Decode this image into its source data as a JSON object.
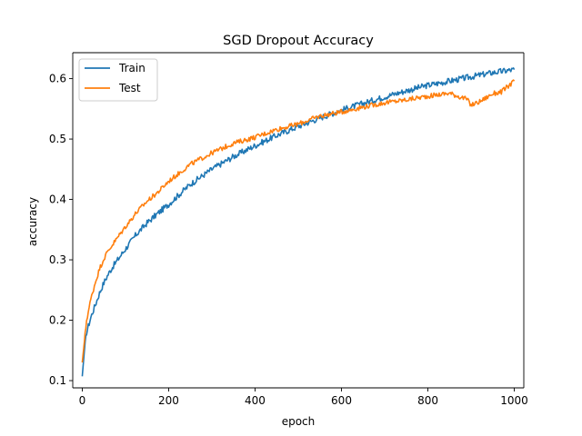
{
  "chart_data": {
    "type": "line",
    "title": "SGD Dropout Accuracy",
    "xlabel": "epoch",
    "ylabel": "accuracy",
    "xlim": [
      -22,
      1022
    ],
    "ylim": [
      0.088,
      0.643
    ],
    "xticks": [
      0,
      200,
      400,
      600,
      800,
      1000
    ],
    "xtick_labels": [
      "0",
      "200",
      "400",
      "600",
      "800",
      "1000"
    ],
    "yticks": [
      0.1,
      0.2,
      0.3,
      0.4,
      0.5,
      0.6
    ],
    "ytick_labels": [
      "0.1",
      "0.2",
      "0.3",
      "0.4",
      "0.5",
      "0.6"
    ],
    "grid": false,
    "legend_position": "top-left",
    "series": [
      {
        "name": "Train",
        "color": "#1f77b4",
        "x": [
          0,
          5,
          10,
          20,
          30,
          40,
          50,
          60,
          70,
          80,
          100,
          125,
          150,
          175,
          200,
          250,
          300,
          350,
          400,
          450,
          500,
          550,
          600,
          650,
          700,
          750,
          800,
          850,
          900,
          950,
          1000
        ],
        "y": [
          0.107,
          0.15,
          0.18,
          0.205,
          0.225,
          0.245,
          0.262,
          0.276,
          0.288,
          0.298,
          0.318,
          0.342,
          0.361,
          0.377,
          0.392,
          0.425,
          0.45,
          0.471,
          0.489,
          0.506,
          0.521,
          0.535,
          0.548,
          0.559,
          0.57,
          0.58,
          0.589,
          0.596,
          0.603,
          0.61,
          0.615
        ]
      },
      {
        "name": "Test",
        "color": "#ff7f0e",
        "x": [
          0,
          5,
          10,
          20,
          30,
          40,
          50,
          60,
          70,
          80,
          100,
          125,
          150,
          175,
          200,
          250,
          300,
          350,
          400,
          450,
          500,
          550,
          600,
          650,
          700,
          750,
          800,
          850,
          890,
          900,
          920,
          950,
          970,
          1000
        ],
        "y": [
          0.13,
          0.165,
          0.2,
          0.235,
          0.262,
          0.285,
          0.302,
          0.315,
          0.325,
          0.335,
          0.355,
          0.378,
          0.397,
          0.412,
          0.43,
          0.458,
          0.477,
          0.493,
          0.503,
          0.516,
          0.525,
          0.538,
          0.545,
          0.553,
          0.56,
          0.565,
          0.571,
          0.576,
          0.566,
          0.556,
          0.562,
          0.575,
          0.578,
          0.596
        ]
      }
    ]
  }
}
